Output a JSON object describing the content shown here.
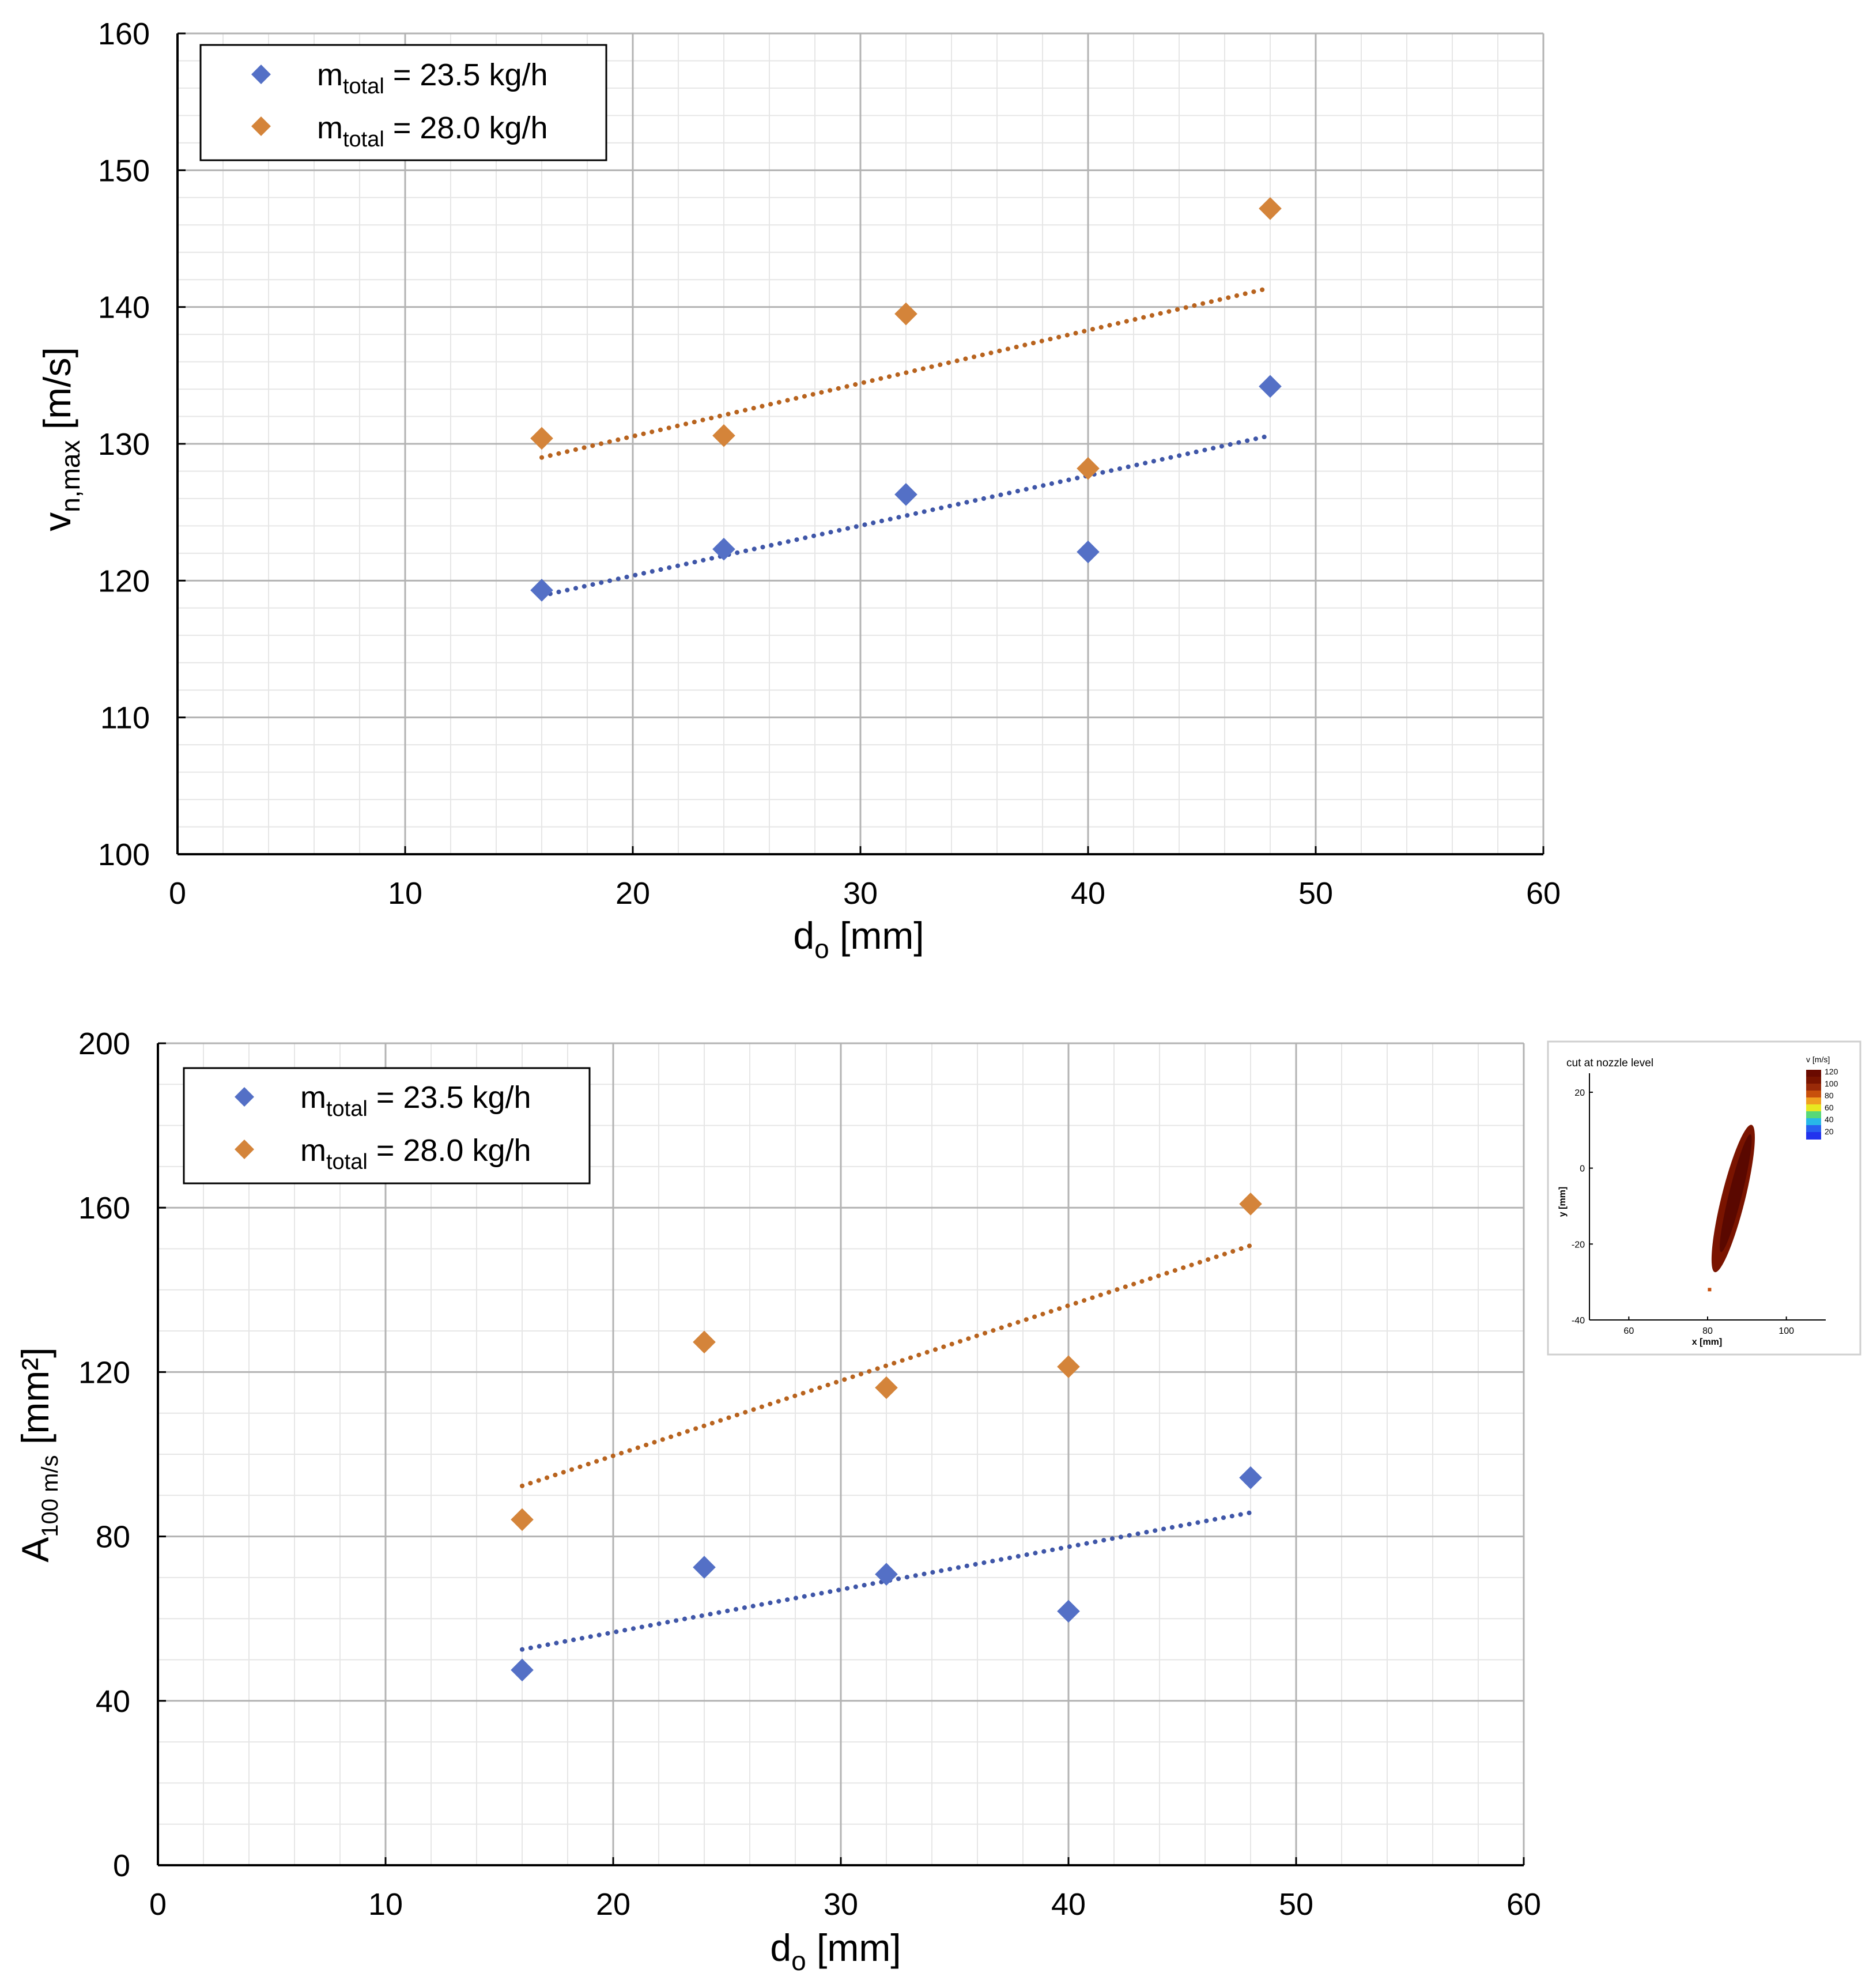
{
  "colors": {
    "series_low": "#5470c6",
    "series_high": "#d4843a",
    "trend_low": "#3f56a8",
    "trend_high": "#b8631e",
    "grid_major": "#b3b3b3",
    "grid_minor": "#e6e6e6",
    "axis": "#000000",
    "inset_low": "#2233ee",
    "inset_high": "#7a1400"
  },
  "chart_data": [
    {
      "id": "top",
      "type": "scatter",
      "title": "",
      "xlabel": {
        "main": "d",
        "sub": "o",
        "tail": " [mm]"
      },
      "ylabel": {
        "main": "v",
        "sub": "n,max",
        "tail": " [m/s]"
      },
      "xlim": [
        0,
        60
      ],
      "ylim": [
        100,
        160
      ],
      "xticks": [
        0,
        10,
        20,
        30,
        40,
        50,
        60
      ],
      "yticks": [
        100,
        110,
        120,
        130,
        140,
        150,
        160
      ],
      "x_minor_step": 2,
      "y_minor_step": 2,
      "legend": {
        "position": "top-left",
        "entries": [
          {
            "main": "m",
            "sub": "total",
            "tail": " = 23.5 kg/h"
          },
          {
            "main": "m",
            "sub": "total",
            "tail": " = 28.0 kg/h"
          }
        ]
      },
      "series": [
        {
          "name": "m_total = 23.5 kg/h",
          "color_key": "series_low",
          "trend_color_key": "trend_low",
          "x": [
            16,
            24,
            32,
            40,
            48
          ],
          "y": [
            119.3,
            122.3,
            126.3,
            122.1,
            134.2
          ],
          "trend": {
            "x": [
              16,
              48
            ],
            "y": [
              118.9,
              130.6
            ]
          }
        },
        {
          "name": "m_total = 28.0 kg/h",
          "color_key": "series_high",
          "trend_color_key": "trend_high",
          "x": [
            16,
            24,
            32,
            40,
            48
          ],
          "y": [
            130.4,
            130.6,
            139.5,
            128.2,
            147.2
          ],
          "trend": {
            "x": [
              16,
              48
            ],
            "y": [
              129.0,
              141.4
            ]
          }
        }
      ]
    },
    {
      "id": "bottom",
      "type": "scatter",
      "title": "",
      "xlabel": {
        "main": "d",
        "sub": "o",
        "tail": " [mm]"
      },
      "ylabel": {
        "main": "A",
        "sub": "100 m/s",
        "tail": " [mm²]"
      },
      "xlim": [
        0,
        60
      ],
      "ylim": [
        0,
        200
      ],
      "xticks": [
        0,
        10,
        20,
        30,
        40,
        50,
        60
      ],
      "yticks": [
        0,
        40,
        80,
        120,
        160,
        200
      ],
      "x_minor_step": 2,
      "y_minor_step": 10,
      "legend": {
        "position": "top-left",
        "entries": [
          {
            "main": "m",
            "sub": "total",
            "tail": " = 23.5 kg/h"
          },
          {
            "main": "m",
            "sub": "total",
            "tail": " = 28.0 kg/h"
          }
        ]
      },
      "series": [
        {
          "name": "m_total = 23.5 kg/h",
          "color_key": "series_low",
          "trend_color_key": "trend_low",
          "x": [
            16,
            24,
            32,
            40,
            48
          ],
          "y": [
            47.5,
            72.5,
            70.8,
            61.8,
            94.3
          ],
          "trend": {
            "x": [
              16,
              48
            ],
            "y": [
              52.5,
              85.8
            ]
          }
        },
        {
          "name": "m_total = 28.0 kg/h",
          "color_key": "series_high",
          "trend_color_key": "trend_high",
          "x": [
            16,
            24,
            32,
            40,
            48
          ],
          "y": [
            84.1,
            127.3,
            116.2,
            121.3,
            160.9
          ],
          "trend": {
            "x": [
              16,
              48
            ],
            "y": [
              92.3,
              150.8
            ]
          }
        }
      ]
    },
    {
      "id": "inset",
      "type": "heatmap",
      "title": "cut at nozzle level",
      "xlabel": "x [mm]",
      "ylabel": "y [mm]",
      "xlim": [
        50,
        110
      ],
      "ylim": [
        -40,
        25
      ],
      "xticks": [
        60,
        80,
        100
      ],
      "yticks": [
        -40,
        -20,
        0,
        20
      ],
      "colorbar": {
        "label": "v [m/s]",
        "ticks": [
          120,
          100,
          80,
          60,
          40,
          20
        ]
      },
      "region_description": "elongated high-velocity jet cross-section",
      "region": {
        "center_x": 86.5,
        "center_y": -8,
        "x_range": [
          84,
          90
        ],
        "y_range": [
          -27,
          13
        ]
      }
    }
  ]
}
